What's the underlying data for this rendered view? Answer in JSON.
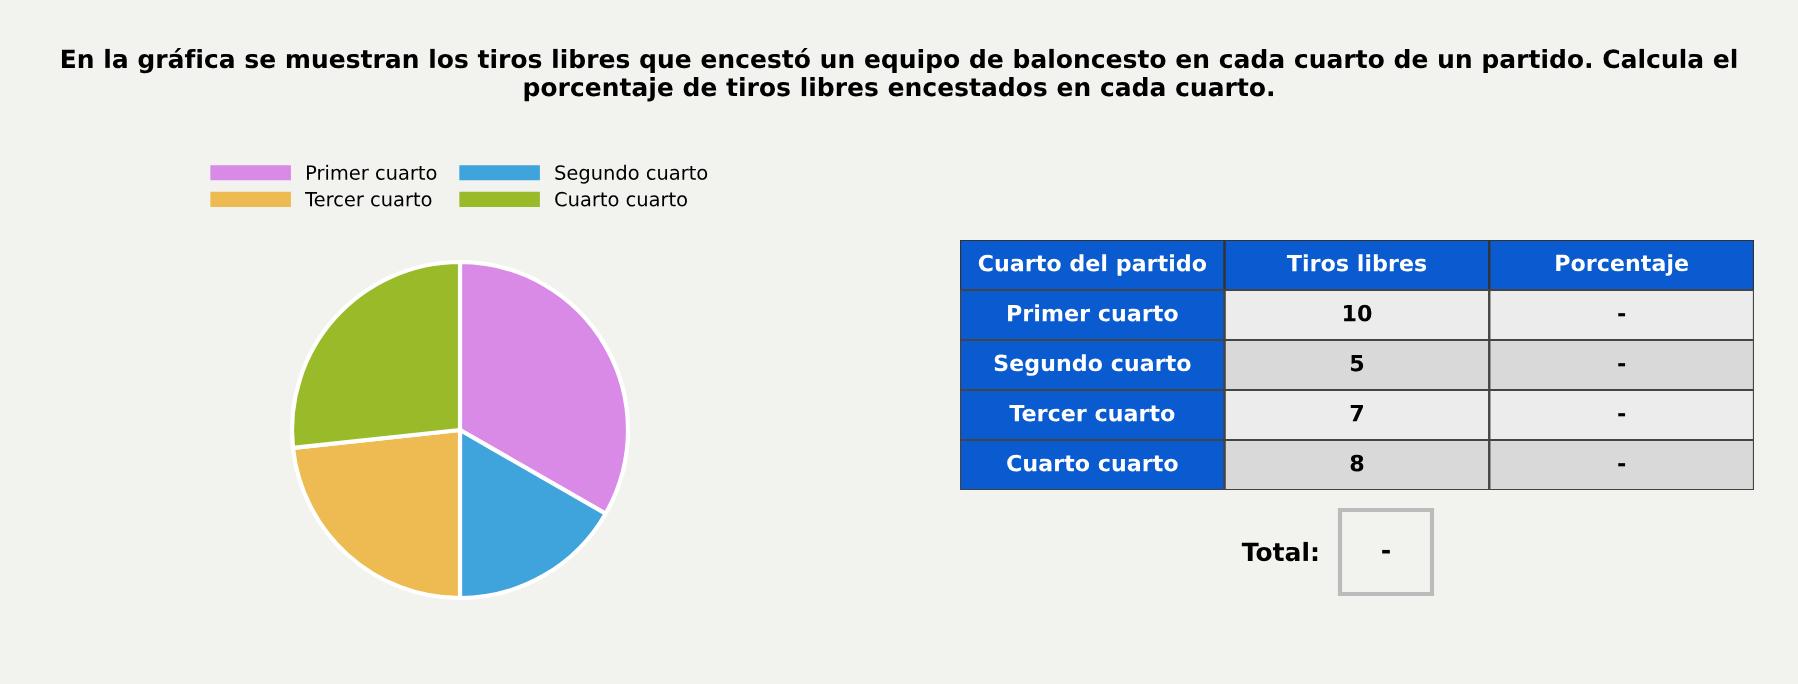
{
  "chart_data": [
    {
      "type": "pie",
      "title": "En la gráfica se muestran los tiros libres que encestó un equipo de baloncesto en cada cuarto de un partido. Calcula el porcentaje de tiros libres encestados en cada cuarto.",
      "categories": [
        "Primer cuarto",
        "Segundo cuarto",
        "Tercer cuarto",
        "Cuarto cuarto"
      ],
      "values": [
        33.3,
        16.7,
        23.3,
        26.7
      ],
      "colors": [
        "#d98ae6",
        "#3fa3dc",
        "#edbb52",
        "#99bb2a"
      ],
      "legend": "top"
    },
    {
      "type": "other",
      "annotations": [
        "Cuarto del partido",
        "Tiros libres",
        "Porcentaje",
        "Primer cuarto",
        "10",
        "-",
        "Segundo cuarto",
        "5",
        "-",
        "Tercer cuarto",
        "7",
        "-",
        "Cuarto cuarto",
        "8",
        "-",
        "Total:",
        "-"
      ]
    }
  ]
}
